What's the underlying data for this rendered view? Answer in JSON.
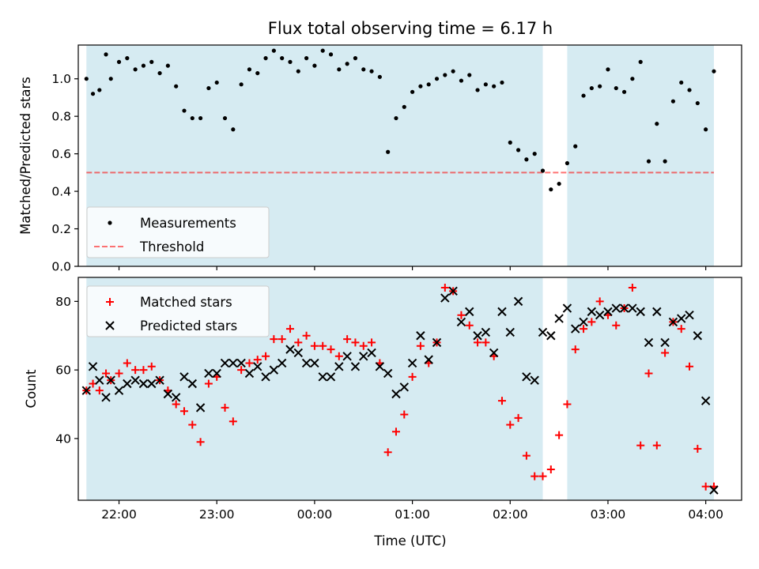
{
  "title": "Flux total observing time = 6.17 h",
  "colors": {
    "observing_band": "#add8e6",
    "measurements": "#000000",
    "threshold": "#ff0000",
    "matched": "#ff0000",
    "predicted": "#000000"
  },
  "chart_data": [
    {
      "type": "scatter",
      "ylabel": "Matched/Predicted stars",
      "ylim": [
        0,
        1.18
      ],
      "yticks": [
        0.0,
        0.2,
        0.4,
        0.6,
        0.8,
        1.0
      ],
      "ytick_labels": [
        "0.0",
        "0.2",
        "0.4",
        "0.6",
        "0.8",
        "1.0"
      ],
      "xlim": [
        "21:35",
        "04:22"
      ],
      "grid": false,
      "legend": "lower-left",
      "observing_windows": [
        [
          "21:40",
          "02:20"
        ],
        [
          "02:35",
          "04:05"
        ]
      ],
      "threshold": {
        "name": "Threshold",
        "value": 0.5,
        "x": [
          "21:40",
          "04:05"
        ],
        "style": "dashed"
      },
      "series": [
        {
          "name": "Measurements",
          "x": [
            "21:40",
            "21:44",
            "21:48",
            "21:52",
            "21:55",
            "22:00",
            "22:05",
            "22:10",
            "22:15",
            "22:20",
            "22:25",
            "22:30",
            "22:35",
            "22:40",
            "22:45",
            "22:50",
            "22:55",
            "23:00",
            "23:05",
            "23:10",
            "23:15",
            "23:20",
            "23:25",
            "23:30",
            "23:35",
            "23:40",
            "23:45",
            "23:50",
            "23:55",
            "00:00",
            "00:05",
            "00:10",
            "00:15",
            "00:20",
            "00:25",
            "00:30",
            "00:35",
            "00:40",
            "00:45",
            "00:50",
            "00:55",
            "01:00",
            "01:05",
            "01:10",
            "01:15",
            "01:20",
            "01:25",
            "01:30",
            "01:35",
            "01:40",
            "01:45",
            "01:50",
            "01:55",
            "02:00",
            "02:05",
            "02:10",
            "02:15",
            "02:20",
            "02:25",
            "02:30",
            "02:35",
            "02:40",
            "02:45",
            "02:50",
            "02:55",
            "03:00",
            "03:05",
            "03:10",
            "03:15",
            "03:20",
            "03:25",
            "03:30",
            "03:35",
            "03:40",
            "03:45",
            "03:50",
            "03:55",
            "04:00",
            "04:05"
          ],
          "y": [
            1.0,
            0.92,
            0.94,
            1.13,
            1.0,
            1.09,
            1.11,
            1.05,
            1.07,
            1.09,
            1.03,
            1.07,
            0.96,
            0.83,
            0.79,
            0.79,
            0.95,
            0.98,
            0.79,
            0.73,
            0.97,
            1.05,
            1.03,
            1.11,
            1.15,
            1.11,
            1.09,
            1.04,
            1.11,
            1.07,
            1.15,
            1.13,
            1.05,
            1.08,
            1.11,
            1.05,
            1.04,
            1.01,
            0.61,
            0.79,
            0.85,
            0.93,
            0.96,
            0.97,
            1.0,
            1.02,
            1.04,
            0.99,
            1.02,
            0.94,
            0.97,
            0.96,
            0.98,
            0.66,
            0.62,
            0.57,
            0.6,
            0.51,
            0.41,
            0.44,
            0.55,
            0.64,
            0.91,
            0.95,
            0.96,
            1.05,
            0.95,
            0.93,
            1.0,
            1.09,
            0.56,
            0.76,
            0.56,
            0.88,
            0.98,
            0.94,
            0.87,
            0.73,
            1.04
          ]
        }
      ]
    },
    {
      "type": "scatter",
      "xlabel": "Time (UTC)",
      "ylabel": "Count",
      "ylim": [
        22,
        87
      ],
      "yticks": [
        40,
        60,
        80
      ],
      "ytick_labels": [
        "40",
        "60",
        "80"
      ],
      "xlim": [
        "21:35",
        "04:22"
      ],
      "xticks": [
        "22:00",
        "23:00",
        "00:00",
        "01:00",
        "02:00",
        "03:00",
        "04:00"
      ],
      "grid": false,
      "legend": "top-left",
      "observing_windows": [
        [
          "21:40",
          "02:20"
        ],
        [
          "02:35",
          "04:05"
        ]
      ],
      "series": [
        {
          "name": "Matched stars",
          "marker": "+",
          "x": [
            "21:40",
            "21:44",
            "21:48",
            "21:52",
            "21:55",
            "22:00",
            "22:05",
            "22:10",
            "22:15",
            "22:20",
            "22:25",
            "22:30",
            "22:35",
            "22:40",
            "22:45",
            "22:50",
            "22:55",
            "23:00",
            "23:05",
            "23:10",
            "23:15",
            "23:20",
            "23:25",
            "23:30",
            "23:35",
            "23:40",
            "23:45",
            "23:50",
            "23:55",
            "00:00",
            "00:05",
            "00:10",
            "00:15",
            "00:20",
            "00:25",
            "00:30",
            "00:35",
            "00:40",
            "00:45",
            "00:50",
            "00:55",
            "01:00",
            "01:05",
            "01:10",
            "01:15",
            "01:20",
            "01:25",
            "01:30",
            "01:35",
            "01:40",
            "01:45",
            "01:50",
            "01:55",
            "02:00",
            "02:05",
            "02:10",
            "02:15",
            "02:20",
            "02:25",
            "02:30",
            "02:35",
            "02:40",
            "02:45",
            "02:50",
            "02:55",
            "03:00",
            "03:05",
            "03:10",
            "03:15",
            "03:20",
            "03:25",
            "03:30",
            "03:35",
            "03:40",
            "03:45",
            "03:50",
            "03:55",
            "04:00",
            "04:05"
          ],
          "y": [
            54,
            56,
            54,
            59,
            57,
            59,
            62,
            60,
            60,
            61,
            57,
            54,
            50,
            48,
            44,
            39,
            56,
            58,
            49,
            45,
            60,
            62,
            63,
            64,
            69,
            69,
            72,
            68,
            70,
            67,
            67,
            66,
            64,
            69,
            68,
            67,
            68,
            62,
            36,
            42,
            47,
            58,
            67,
            62,
            68,
            84,
            83,
            76,
            73,
            68,
            68,
            64,
            51,
            44,
            46,
            35,
            29,
            29,
            31,
            41,
            50,
            66,
            72,
            74,
            80,
            76,
            73,
            78,
            84,
            38,
            59,
            38,
            65,
            74,
            72,
            61,
            37,
            26,
            26
          ]
        },
        {
          "name": "Predicted stars",
          "marker": "x",
          "x": [
            "21:40",
            "21:44",
            "21:48",
            "21:52",
            "21:55",
            "22:00",
            "22:05",
            "22:10",
            "22:15",
            "22:20",
            "22:25",
            "22:30",
            "22:35",
            "22:40",
            "22:45",
            "22:50",
            "22:55",
            "23:00",
            "23:05",
            "23:10",
            "23:15",
            "23:20",
            "23:25",
            "23:30",
            "23:35",
            "23:40",
            "23:45",
            "23:50",
            "23:55",
            "00:00",
            "00:05",
            "00:10",
            "00:15",
            "00:20",
            "00:25",
            "00:30",
            "00:35",
            "00:40",
            "00:45",
            "00:50",
            "00:55",
            "01:00",
            "01:05",
            "01:10",
            "01:15",
            "01:20",
            "01:25",
            "01:30",
            "01:35",
            "01:40",
            "01:45",
            "01:50",
            "01:55",
            "02:00",
            "02:05",
            "02:10",
            "02:15",
            "02:20",
            "02:25",
            "02:30",
            "02:35",
            "02:40",
            "02:45",
            "02:50",
            "02:55",
            "03:00",
            "03:05",
            "03:10",
            "03:15",
            "03:20",
            "03:25",
            "03:30",
            "03:35",
            "03:40",
            "03:45",
            "03:50",
            "03:55",
            "04:00",
            "04:05"
          ],
          "y": [
            54,
            61,
            57,
            52,
            57,
            54,
            56,
            57,
            56,
            56,
            57,
            53,
            52,
            58,
            56,
            49,
            59,
            59,
            62,
            62,
            62,
            59,
            61,
            58,
            60,
            62,
            66,
            65,
            62,
            62,
            58,
            58,
            61,
            64,
            61,
            64,
            65,
            61,
            59,
            53,
            55,
            62,
            70,
            63,
            68,
            81,
            83,
            74,
            77,
            70,
            71,
            65,
            77,
            71,
            80,
            58,
            57,
            71,
            70,
            75,
            78,
            72,
            74,
            77,
            76,
            77,
            78,
            78,
            78,
            77,
            68,
            77,
            68,
            74,
            75,
            76,
            70,
            51,
            25
          ]
        }
      ]
    }
  ]
}
